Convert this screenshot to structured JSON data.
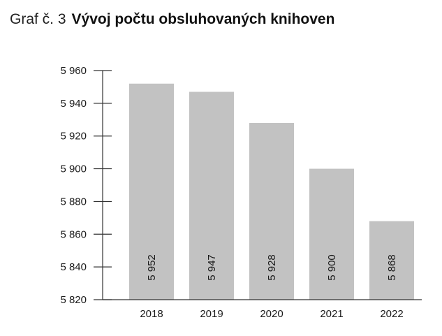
{
  "title": {
    "prefix": "Graf č. 3",
    "main": "Vývoj počtu obsluhovaných knihoven"
  },
  "chart_data": {
    "type": "bar",
    "categories": [
      "2018",
      "2019",
      "2020",
      "2021",
      "2022"
    ],
    "values": [
      5952,
      5947,
      5928,
      5900,
      5868
    ],
    "value_labels": [
      "5 952",
      "5 947",
      "5 928",
      "5 900",
      "5 868"
    ],
    "ylim": [
      5820,
      5960
    ],
    "yticks": [
      5820,
      5840,
      5860,
      5880,
      5900,
      5920,
      5940,
      5960
    ],
    "ytick_labels": [
      "5 820",
      "5 840",
      "5 860",
      "5 880",
      "5 900",
      "5 920",
      "5 940",
      "5 960"
    ],
    "grid": false,
    "bar_color": "#c2c2c2",
    "axis_color": "#333333"
  }
}
